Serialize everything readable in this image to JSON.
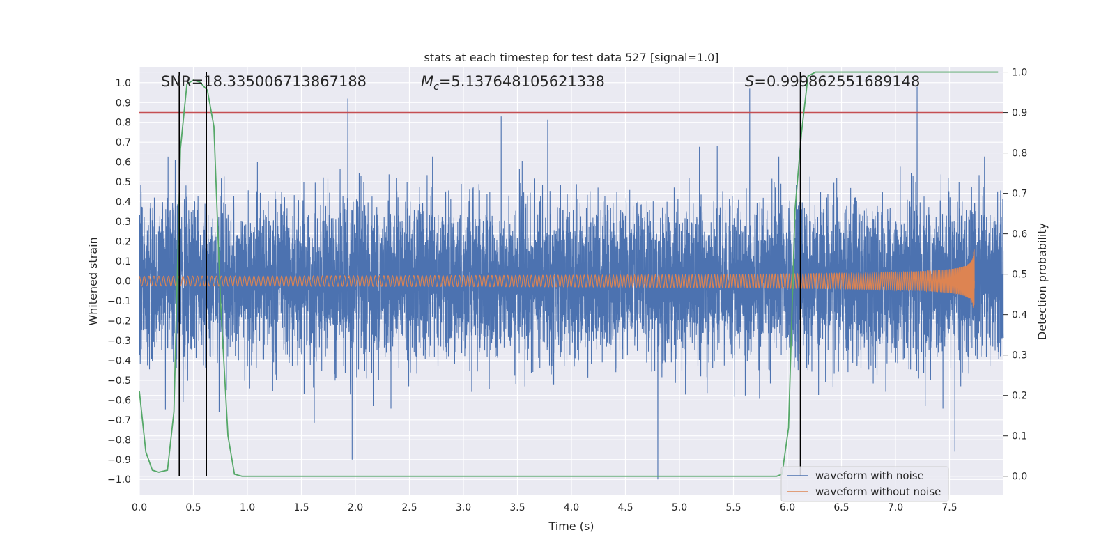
{
  "chart_data": {
    "type": "line",
    "title": "stats at each timestep for test data 527 [signal=1.0]",
    "xlabel": "Time (s)",
    "ylabel_left": "Whitened strain",
    "ylabel_right": "Detection probability",
    "xlim": [
      0.0,
      8.0
    ],
    "ylim_left": [
      -1.08,
      1.08
    ],
    "ylim_right": [
      -0.047,
      1.013
    ],
    "x_ticks": [
      "0.0",
      "0.5",
      "1.0",
      "1.5",
      "2.0",
      "2.5",
      "3.0",
      "3.5",
      "4.0",
      "4.5",
      "5.0",
      "5.5",
      "6.0",
      "6.5",
      "7.0",
      "7.5"
    ],
    "y_ticks_left": [
      "1.0",
      "0.9",
      "0.8",
      "0.7",
      "0.6",
      "0.5",
      "0.4",
      "0.3",
      "0.2",
      "0.1",
      "0.0",
      "−0.1",
      "−0.2",
      "−0.3",
      "−0.4",
      "−0.5",
      "−0.6",
      "−0.7",
      "−0.8",
      "−0.9",
      "−1.0"
    ],
    "y_ticks_right": [
      "1.0",
      "0.9",
      "0.8",
      "0.7",
      "0.6",
      "0.5",
      "0.4",
      "0.3",
      "0.2",
      "0.1",
      "0.0"
    ],
    "annotations": {
      "snr_prefix": "SNR=",
      "snr_value": "18.335006713867188",
      "mc_symbol": "M",
      "mc_subscript": "c",
      "mc_value": "=5.137648105621338",
      "s_symbol": "S",
      "s_value": "=0.999862551689148"
    },
    "threshold_probability": 0.9,
    "threshold_color": "#c44e52",
    "vertical_markers_x": [
      0.37,
      0.62,
      6.12
    ],
    "series": [
      {
        "name": "waveform with noise",
        "color": "#4c72b0",
        "axis": "left",
        "noise_std": 0.19,
        "peaks": [
          [
            1.93,
            0.92
          ],
          [
            3.35,
            0.83
          ],
          [
            5.65,
            0.97
          ],
          [
            7.2,
            0.98
          ],
          [
            4.8,
            -1.0
          ],
          [
            1.97,
            -0.9
          ],
          [
            7.55,
            -0.86
          ]
        ]
      },
      {
        "name": "waveform without noise",
        "color": "#dd8452",
        "axis": "left",
        "chirp_start_time": 0.0,
        "merger_time": 7.73,
        "start_amplitude": 0.025,
        "peak_amplitude": 0.42,
        "start_frequency_hz": 22
      },
      {
        "name": "detection probability",
        "color": "#55a868",
        "axis": "right",
        "x": [
          0.0,
          0.06,
          0.12,
          0.18,
          0.26,
          0.32,
          0.38,
          0.44,
          0.5,
          0.56,
          0.63,
          0.69,
          0.75,
          0.82,
          0.88,
          0.95,
          1.2,
          2.0,
          3.0,
          4.0,
          5.0,
          5.9,
          5.95,
          6.01,
          6.07,
          6.13,
          6.19,
          6.26,
          6.5,
          7.0,
          7.5,
          7.95
        ],
        "y": [
          0.21,
          0.06,
          0.015,
          0.01,
          0.015,
          0.16,
          0.81,
          0.97,
          0.98,
          0.975,
          0.955,
          0.865,
          0.44,
          0.1,
          0.005,
          0.0,
          0.0,
          0.0,
          0.0,
          0.0,
          0.0,
          0.0,
          0.005,
          0.12,
          0.66,
          0.85,
          0.99,
          1.0,
          1.0,
          1.0,
          1.0,
          1.0
        ]
      }
    ],
    "legend_position": "lower right",
    "grid": true
  }
}
